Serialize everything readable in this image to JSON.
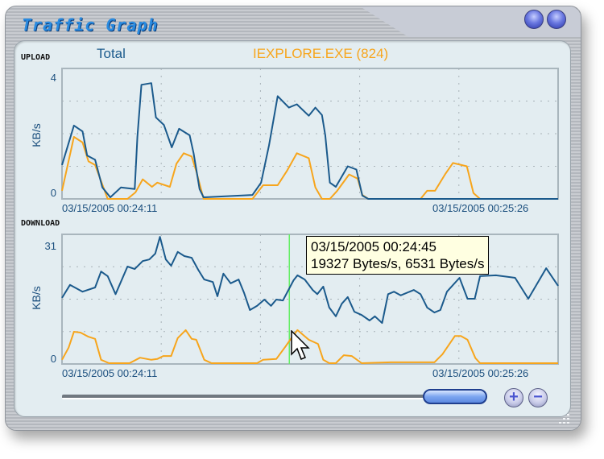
{
  "window": {
    "title": "Traffic Graph"
  },
  "legend": {
    "total": "Total",
    "process": "IEXPLORE.EXE (824)",
    "total_color": "#1b5a8c",
    "process_color": "#f7a51c"
  },
  "controls": {
    "zoom_in": "+",
    "zoom_out": "−",
    "window_buttons": [
      "minimize-orb",
      "close-orb"
    ]
  },
  "tooltip": {
    "time": "03/15/2005 00:24:45",
    "values": "19327 Bytes/s, 6531 Bytes/s"
  },
  "cursor_time": "00:24:45",
  "chart_data": [
    {
      "type": "line",
      "title": "UPLOAD",
      "ylabel": "KB/s",
      "ylim": [
        0,
        4
      ],
      "ytick_labels": [
        "4",
        "0"
      ],
      "x_start_label": "03/15/2005 00:24:11",
      "x_end_label": "03/15/2005 00:25:26",
      "xlim": [
        "00:24:11",
        "00:25:26"
      ],
      "grid": true,
      "series": [
        {
          "name": "Total",
          "color": "#1b5a8c",
          "x": [
            "00:24:11.0",
            "00:24:12.8",
            "00:24:14.1",
            "00:24:14.8",
            "00:24:16.0",
            "00:24:17.1",
            "00:24:18.3",
            "00:24:19.9",
            "00:24:22.0",
            "00:24:22.4",
            "00:24:23.0",
            "00:24:24.5",
            "00:24:25.2",
            "00:24:26.4",
            "00:24:27.6",
            "00:24:28.7",
            "00:24:30.3",
            "00:24:30.9",
            "00:24:31.8",
            "00:24:32.4",
            "00:24:37.9",
            "00:24:39.8",
            "00:24:41.1",
            "00:24:42.3",
            "00:24:43.6",
            "00:24:45.3",
            "00:24:46.5",
            "00:24:48.3",
            "00:24:49.3",
            "00:24:50.3",
            "00:24:50.8",
            "00:24:51.5",
            "00:24:52.4",
            "00:24:54.2",
            "00:24:55.5",
            "00:24:56.4",
            "00:24:57.3",
            "00:25:26.0"
          ],
          "y": [
            1.04,
            2.25,
            2.07,
            1.33,
            1.2,
            0.35,
            0.05,
            0.35,
            0.3,
            1.9,
            3.5,
            3.55,
            2.5,
            2.27,
            1.58,
            2.15,
            1.95,
            1.4,
            0.3,
            0.05,
            0.1,
            0.12,
            0.5,
            1.65,
            3.15,
            2.8,
            2.9,
            2.55,
            2.8,
            2.57,
            1.95,
            0.5,
            0.37,
            1.0,
            0.9,
            0.1,
            0,
            0
          ]
        },
        {
          "name": "IEXPLORE.EXE (824)",
          "color": "#f7a51c",
          "x": [
            "00:24:11.0",
            "00:24:12.8",
            "00:24:14.1",
            "00:24:15.0",
            "00:24:16.0",
            "00:24:17.9",
            "00:24:20.9",
            "00:24:22.1",
            "00:24:23.2",
            "00:24:24.6",
            "00:24:25.4",
            "00:24:27.3",
            "00:24:28.3",
            "00:24:29.4",
            "00:24:30.6",
            "00:24:31.3",
            "00:24:32.4",
            "00:24:39.8",
            "00:24:41.4",
            "00:24:43.6",
            "00:24:45.0",
            "00:24:46.5",
            "00:24:48.3",
            "00:24:49.3",
            "00:24:50.3",
            "00:24:51.5",
            "00:24:52.6",
            "00:24:54.4",
            "00:24:55.7",
            "00:24:56.4",
            "00:24:57.3",
            "00:25:05.2",
            "00:25:06.2",
            "00:25:07.4",
            "00:25:08.9",
            "00:25:10.1",
            "00:25:12.2",
            "00:25:13.2",
            "00:25:14.2",
            "00:25:26.0"
          ],
          "y": [
            0.25,
            1.9,
            1.73,
            1.15,
            1.04,
            0,
            0,
            0.2,
            0.6,
            0.37,
            0.5,
            0.37,
            1.08,
            1.4,
            1.3,
            0.85,
            0,
            0,
            0.42,
            0.42,
            0.86,
            1.4,
            1.25,
            0.35,
            0,
            0,
            0.25,
            0.75,
            0.62,
            0.12,
            0,
            0,
            0.25,
            0.25,
            0.75,
            1.1,
            1.0,
            0.18,
            0,
            0
          ]
        }
      ]
    },
    {
      "type": "line",
      "title": "DOWNLOAD",
      "ylabel": "KB/s",
      "ylim": [
        0,
        31
      ],
      "ytick_labels": [
        "31",
        "0"
      ],
      "x_start_label": "03/15/2005 00:24:11",
      "x_end_label": "03/15/2005 00:25:26",
      "xlim": [
        "00:24:11",
        "00:25:26"
      ],
      "grid": true,
      "series": [
        {
          "name": "Total",
          "color": "#1b5a8c",
          "x": [
            "00:24:11.0",
            "00:24:12.2",
            "00:24:14.1",
            "00:24:16.0",
            "00:24:16.9",
            "00:24:17.9",
            "00:24:19.1",
            "00:24:20.9",
            "00:24:22.0",
            "00:24:23.2",
            "00:24:24.2",
            "00:24:25.1",
            "00:24:25.8",
            "00:24:26.7",
            "00:24:27.5",
            "00:24:28.5",
            "00:24:29.5",
            "00:24:30.6",
            "00:24:31.6",
            "00:24:32.5",
            "00:24:33.8",
            "00:24:34.5",
            "00:24:35.4",
            "00:24:36.5",
            "00:24:37.7",
            "00:24:38.5",
            "00:24:39.4",
            "00:24:40.5",
            "00:24:41.6",
            "00:24:42.6",
            "00:24:43.4",
            "00:24:44.4",
            "00:24:46.0",
            "00:24:46.6",
            "00:24:47.7",
            "00:24:48.9",
            "00:24:49.6",
            "00:24:50.5",
            "00:24:51.4",
            "00:24:52.4",
            "00:24:53.3",
            "00:24:54.2",
            "00:24:55.2",
            "00:24:56.3",
            "00:24:57.5",
            "00:24:58.3",
            "00:24:59.4",
            "00:25:00.3",
            "00:25:01.2",
            "00:25:02.2",
            "00:25:04.2",
            "00:25:05.2",
            "00:25:06.2",
            "00:25:07.3",
            "00:25:08.2",
            "00:25:09.2",
            "00:25:11.1",
            "00:25:12.3",
            "00:25:13.4",
            "00:25:14.2",
            "00:25:16.6",
            "00:25:19.5",
            "00:25:21.5",
            "00:25:24.2",
            "00:25:26.0"
          ],
          "y": [
            15.8,
            18.9,
            17.3,
            18.3,
            22.1,
            21.0,
            16.7,
            23.3,
            22.7,
            24.6,
            25.0,
            26.4,
            30.4,
            25.0,
            23.5,
            26.8,
            25.8,
            25.4,
            22.5,
            20.2,
            19.6,
            16.2,
            21.6,
            19.3,
            20.2,
            17.1,
            12.9,
            13.9,
            15.4,
            13.9,
            15.4,
            15.2,
            20.0,
            21.2,
            20.2,
            17.7,
            16.7,
            18.5,
            13.5,
            11.4,
            14.4,
            16.0,
            12.5,
            11.7,
            10.4,
            11.4,
            9.8,
            16.7,
            17.3,
            16.4,
            17.7,
            16.7,
            13.5,
            12.3,
            12.9,
            17.3,
            20.6,
            15.6,
            15.6,
            21.0,
            21.2,
            20.6,
            15.6,
            22.9,
            18.7
          ]
        },
        {
          "name": "IEXPLORE.EXE (824)",
          "color": "#f7a51c",
          "x": [
            "00:24:11.0",
            "00:24:12.0",
            "00:24:12.8",
            "00:24:13.8",
            "00:24:15.0",
            "00:24:16.0",
            "00:24:16.9",
            "00:24:18.1",
            "00:24:21.2",
            "00:24:22.8",
            "00:24:24.5",
            "00:24:25.4",
            "00:24:26.3",
            "00:24:27.5",
            "00:24:28.5",
            "00:24:29.7",
            "00:24:30.6",
            "00:24:31.3",
            "00:24:32.5",
            "00:24:33.6",
            "00:24:40.5",
            "00:24:41.4",
            "00:24:43.4",
            "00:24:44.8",
            "00:24:45.9",
            "00:24:46.6",
            "00:24:48.3",
            "00:24:49.7",
            "00:24:50.5",
            "00:24:51.4",
            "00:24:52.4",
            "00:24:53.6",
            "00:24:54.8",
            "00:24:56.3",
            "00:25:00.7",
            "00:25:07.3",
            "00:25:08.5",
            "00:25:10.4",
            "00:25:11.3",
            "00:25:12.3",
            "00:25:13.5",
            "00:25:14.2",
            "00:25:26.0"
          ],
          "y": [
            1.0,
            3.9,
            7.7,
            7.5,
            6.5,
            6.0,
            1.0,
            0.2,
            0.2,
            1.5,
            1.0,
            1.2,
            1.9,
            1.9,
            6.2,
            8.1,
            6.0,
            5.8,
            1.0,
            0.2,
            0.2,
            1.0,
            1.2,
            4.2,
            6.7,
            8.1,
            5.8,
            4.8,
            1.0,
            0.2,
            0.2,
            2.1,
            1.9,
            0.2,
            0.4,
            0.4,
            2.3,
            6.7,
            6.7,
            5.8,
            1.4,
            0.2,
            0.2
          ]
        }
      ]
    }
  ]
}
